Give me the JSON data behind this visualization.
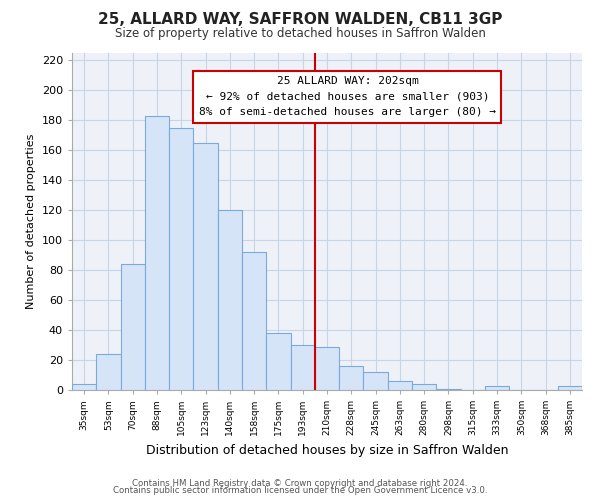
{
  "title": "25, ALLARD WAY, SAFFRON WALDEN, CB11 3GP",
  "subtitle": "Size of property relative to detached houses in Saffron Walden",
  "xlabel": "Distribution of detached houses by size in Saffron Walden",
  "ylabel": "Number of detached properties",
  "categories": [
    "35sqm",
    "53sqm",
    "70sqm",
    "88sqm",
    "105sqm",
    "123sqm",
    "140sqm",
    "158sqm",
    "175sqm",
    "193sqm",
    "210sqm",
    "228sqm",
    "245sqm",
    "263sqm",
    "280sqm",
    "298sqm",
    "315sqm",
    "333sqm",
    "350sqm",
    "368sqm",
    "385sqm"
  ],
  "values": [
    4,
    24,
    84,
    183,
    175,
    165,
    120,
    92,
    38,
    30,
    29,
    16,
    12,
    6,
    4,
    1,
    0,
    3,
    0,
    0,
    3
  ],
  "bar_color": "#d6e4f7",
  "bar_edge_color": "#7aaadd",
  "property_line_x": 9.5,
  "annotation_title": "25 ALLARD WAY: 202sqm",
  "annotation_line1": "← 92% of detached houses are smaller (903)",
  "annotation_line2": "8% of semi-detached houses are larger (80) →",
  "vline_color": "#cc0000",
  "ann_box_color": "#cc0000",
  "ylim": [
    0,
    225
  ],
  "yticks": [
    0,
    20,
    40,
    60,
    80,
    100,
    120,
    140,
    160,
    180,
    200,
    220
  ],
  "footnote1": "Contains HM Land Registry data © Crown copyright and database right 2024.",
  "footnote2": "Contains public sector information licensed under the Open Government Licence v3.0.",
  "background_color": "#ffffff",
  "plot_bg_color": "#eef2f8",
  "grid_color": "#c8d4e8"
}
